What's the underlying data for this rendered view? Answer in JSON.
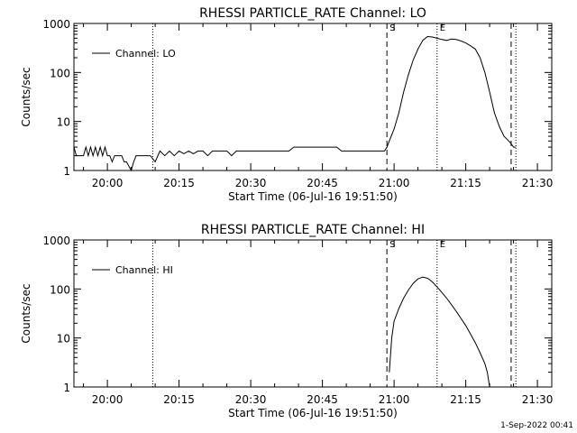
{
  "stamp": "1-Sep-2022 00:41",
  "chart_data": [
    {
      "type": "line",
      "title": "RHESSI PARTICLE_RATE Channel: LO",
      "xlabel": "Start Time (06-Jul-16 19:51:50)",
      "ylabel": "Counts/sec",
      "x_ticks": [
        "20:00",
        "20:15",
        "20:30",
        "20:45",
        "21:00",
        "21:15",
        "21:30"
      ],
      "x_tick_minutes": [
        0,
        15,
        30,
        45,
        60,
        75,
        90
      ],
      "xlim": [
        -7,
        93
      ],
      "y_scale": "log",
      "ylim": [
        1,
        1000
      ],
      "y_ticks": [
        "1",
        "10",
        "100",
        "1000"
      ],
      "legend": {
        "label": "Channel: LO",
        "position": "top-left"
      },
      "markers": [
        {
          "label": "S",
          "minute": 58.5,
          "style": "dashed"
        },
        {
          "label": "E",
          "minute": 69,
          "style": "dotted"
        },
        {
          "label": "",
          "minute": 9.5,
          "style": "dotted"
        },
        {
          "label": "",
          "minute": 84.5,
          "style": "dashed"
        },
        {
          "label": "",
          "minute": 85.5,
          "style": "dotted"
        }
      ],
      "series": [
        {
          "name": "Channel: LO",
          "x": [
            -7,
            -6.5,
            -6,
            -5,
            -4.5,
            -4,
            -3.5,
            -3,
            -2.5,
            -2,
            -1.5,
            -1,
            -0.5,
            0,
            0.5,
            1,
            1.5,
            2,
            2.5,
            3,
            3.5,
            4,
            5,
            5.5,
            6,
            7,
            8,
            9,
            10,
            11,
            12,
            13,
            14,
            15,
            16,
            17,
            18,
            19,
            20,
            21,
            22,
            23,
            24,
            25,
            26,
            27,
            28,
            29,
            30,
            31,
            32,
            33,
            34,
            35,
            36,
            37,
            38,
            39,
            40,
            41,
            42,
            43,
            44,
            45,
            46,
            47,
            48,
            49,
            50,
            51,
            52,
            53,
            54,
            55,
            56,
            57,
            58,
            58.5,
            59,
            60,
            61,
            62,
            63,
            64,
            65,
            66,
            67,
            68,
            69,
            70,
            71,
            72,
            73,
            74,
            75,
            76,
            77,
            78,
            79,
            80,
            81,
            82,
            83,
            84,
            84.5,
            85,
            85.5
          ],
          "y": [
            3,
            2,
            2,
            2,
            3,
            2,
            3,
            2,
            3,
            2,
            3,
            2,
            3,
            2,
            2,
            1.5,
            2,
            2,
            2,
            2,
            1.5,
            1.5,
            1,
            1.5,
            2,
            2,
            2,
            2,
            1.5,
            2.5,
            2,
            2.5,
            2,
            2.5,
            2.2,
            2.5,
            2.2,
            2.5,
            2.5,
            2,
            2.5,
            2.5,
            2.5,
            2.5,
            2,
            2.5,
            2.5,
            2.5,
            2.5,
            2.5,
            2.5,
            2.5,
            2.5,
            2.5,
            2.5,
            2.5,
            2.5,
            3,
            3,
            3,
            3,
            3,
            3,
            3,
            3,
            3,
            3,
            2.5,
            2.5,
            2.5,
            2.5,
            2.5,
            2.5,
            2.5,
            2.5,
            2.5,
            2.5,
            3,
            4,
            7,
            15,
            40,
            90,
            180,
            300,
            450,
            540,
            530,
            500,
            470,
            450,
            480,
            470,
            440,
            400,
            350,
            300,
            200,
            100,
            40,
            15,
            8,
            5,
            4,
            3.5,
            3,
            3
          ]
        }
      ]
    },
    {
      "type": "line",
      "title": "RHESSI PARTICLE_RATE Channel: HI",
      "xlabel": "Start Time (06-Jul-16 19:51:50)",
      "ylabel": "Counts/sec",
      "x_ticks": [
        "20:00",
        "20:15",
        "20:30",
        "20:45",
        "21:00",
        "21:15",
        "21:30"
      ],
      "x_tick_minutes": [
        0,
        15,
        30,
        45,
        60,
        75,
        90
      ],
      "xlim": [
        -7,
        93
      ],
      "y_scale": "log",
      "ylim": [
        1,
        1000
      ],
      "y_ticks": [
        "1",
        "10",
        "100",
        "1000"
      ],
      "legend": {
        "label": "Channel: HI",
        "position": "top-left"
      },
      "markers": [
        {
          "label": "S",
          "minute": 58.5,
          "style": "dashed"
        },
        {
          "label": "E",
          "minute": 69,
          "style": "dotted"
        },
        {
          "label": "",
          "minute": 9.5,
          "style": "dotted"
        },
        {
          "label": "",
          "minute": 84.5,
          "style": "dashed"
        },
        {
          "label": "",
          "minute": 85.5,
          "style": "dotted"
        }
      ],
      "series": [
        {
          "name": "Channel: HI",
          "x": [
            59,
            59.5,
            60,
            61,
            62,
            63,
            64,
            65,
            66,
            67,
            68,
            69,
            70,
            71,
            72,
            73,
            74,
            75,
            76,
            77,
            78,
            79,
            79.5,
            80
          ],
          "y": [
            2,
            10,
            22,
            40,
            65,
            95,
            130,
            160,
            175,
            165,
            140,
            110,
            85,
            65,
            48,
            35,
            25,
            18,
            12,
            8,
            5,
            3,
            2,
            1
          ]
        }
      ]
    }
  ]
}
